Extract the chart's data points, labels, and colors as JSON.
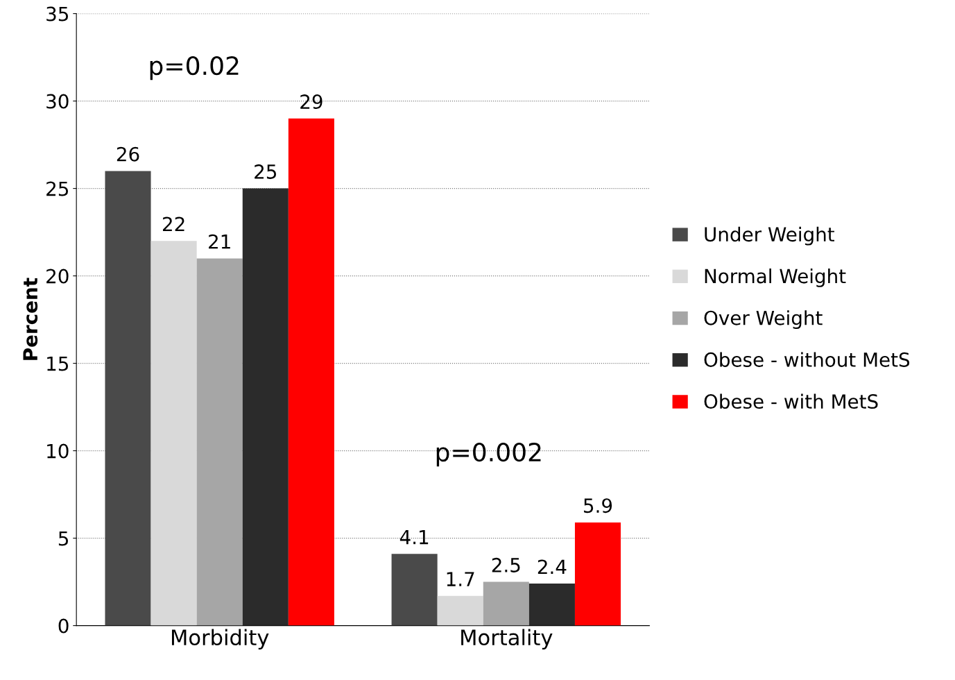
{
  "chart_data": {
    "type": "bar",
    "ylabel": "Percent",
    "categories": [
      "Morbidity",
      "Mortality"
    ],
    "series": [
      {
        "name": "Under Weight",
        "color": "#4a4a4a",
        "values": [
          26,
          4.1
        ]
      },
      {
        "name": "Normal Weight",
        "color": "#d9d9d9",
        "values": [
          22,
          1.7
        ]
      },
      {
        "name": "Over Weight",
        "color": "#a6a6a6",
        "values": [
          21,
          2.5
        ]
      },
      {
        "name": "Obese - without MetS",
        "color": "#2b2b2b",
        "values": [
          25,
          2.4
        ]
      },
      {
        "name": "Obese - with MetS",
        "color": "#ff0000",
        "values": [
          29,
          5.9
        ]
      }
    ],
    "ylim": [
      0,
      35
    ],
    "yticks": [
      0,
      5,
      10,
      15,
      20,
      25,
      30,
      35
    ],
    "grid": "y",
    "legend": "right",
    "data_labels": true,
    "annotations": [
      "p=0.02",
      "p=0.002"
    ]
  }
}
